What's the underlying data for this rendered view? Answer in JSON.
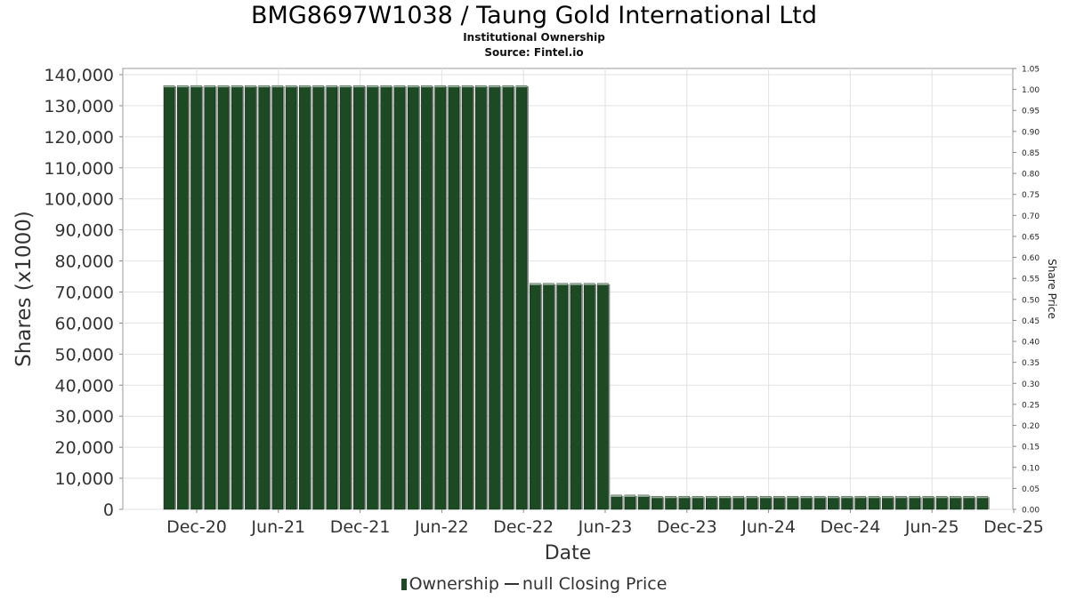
{
  "chart_data": {
    "type": "bar",
    "title": "BMG8697W1038 / Taung Gold International Ltd",
    "subtitle": "Institutional Ownership",
    "source": "Source: Fintel.io",
    "xlabel": "Date",
    "ylabel": "Shares (x1000)",
    "y2label": "Share Price",
    "ylim": [
      0,
      142000
    ],
    "y2lim": [
      0,
      1.05
    ],
    "yticks": [
      "0",
      "10,000",
      "20,000",
      "30,000",
      "40,000",
      "50,000",
      "60,000",
      "70,000",
      "80,000",
      "90,000",
      "100,000",
      "110,000",
      "120,000",
      "130,000",
      "140,000"
    ],
    "y2ticks": [
      "0.00",
      "0.05",
      "0.10",
      "0.15",
      "0.20",
      "0.25",
      "0.30",
      "0.35",
      "0.40",
      "0.45",
      "0.50",
      "0.55",
      "0.60",
      "0.65",
      "0.70",
      "0.75",
      "0.80",
      "0.85",
      "0.90",
      "0.95",
      "1.00",
      "1.05"
    ],
    "xticks": [
      "Dec-20",
      "Jun-21",
      "Dec-21",
      "Jun-22",
      "Dec-22",
      "Jun-23",
      "Dec-23",
      "Jun-24",
      "Dec-24",
      "Jun-25",
      "Dec-25"
    ],
    "grid": true,
    "legend_placement": "bottom",
    "bar_color": "#1b4a23",
    "series": [
      {
        "name": "Ownership",
        "values": [
          136500,
          136500,
          136500,
          136500,
          136500,
          136500,
          136500,
          136500,
          136500,
          136500,
          136500,
          136500,
          136500,
          136500,
          136500,
          136500,
          136500,
          136500,
          136500,
          136500,
          136500,
          136500,
          136500,
          136500,
          136500,
          136500,
          136500,
          72800,
          72800,
          72800,
          72800,
          72800,
          72800,
          4600,
          4600,
          4600,
          4200,
          4200,
          4200,
          4200,
          4200,
          4200,
          4200,
          4200,
          4200,
          4200,
          4200,
          4200,
          4200,
          4200,
          4200,
          4200,
          4200,
          4200,
          4200,
          4200,
          4200,
          4200,
          4200,
          4200,
          4200
        ]
      },
      {
        "name": "null Closing Price",
        "values": []
      }
    ]
  },
  "legend": {
    "ownership_label": "Ownership",
    "price_label": "null Closing Price"
  }
}
